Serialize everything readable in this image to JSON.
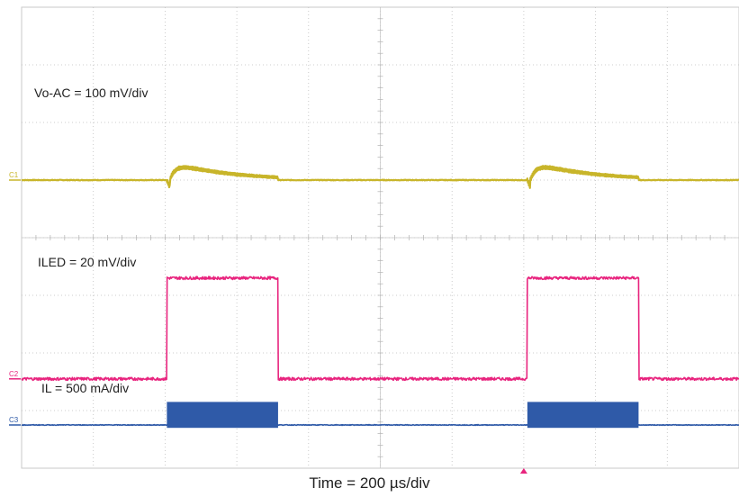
{
  "chart_data": {
    "type": "line",
    "title": "",
    "xlabel": "Time = 200 µs/div",
    "ylabel": "",
    "x_divisions": 10,
    "y_divisions": 8,
    "x_range_us": [
      0,
      2000
    ],
    "trigger_time_us": 1400,
    "grid": true,
    "series": [
      {
        "name": "Vo-AC = 100 mV/div",
        "marker": "C1",
        "color": "#c8b52a",
        "waveform": "ringing_pulse",
        "baseline_div": 5.0,
        "peak_div": 5.3,
        "pulses_us": [
          [
            405,
            715
          ],
          [
            1410,
            1720
          ]
        ]
      },
      {
        "name": "ILED = 20 mV/div",
        "marker": "C2",
        "color": "#e8247e",
        "waveform": "square",
        "low_div": 1.55,
        "high_div": 3.3,
        "pulses_us": [
          [
            405,
            715
          ],
          [
            1410,
            1720
          ]
        ]
      },
      {
        "name": "IL = 500 mA/div",
        "marker": "C3",
        "color": "#2f5aa8",
        "waveform": "filled_burst",
        "baseline_div": 0.75,
        "burst_top_div": 1.15,
        "burst_bottom_div": 0.7,
        "pulses_us": [
          [
            405,
            715
          ],
          [
            1410,
            1720
          ]
        ]
      }
    ]
  }
}
